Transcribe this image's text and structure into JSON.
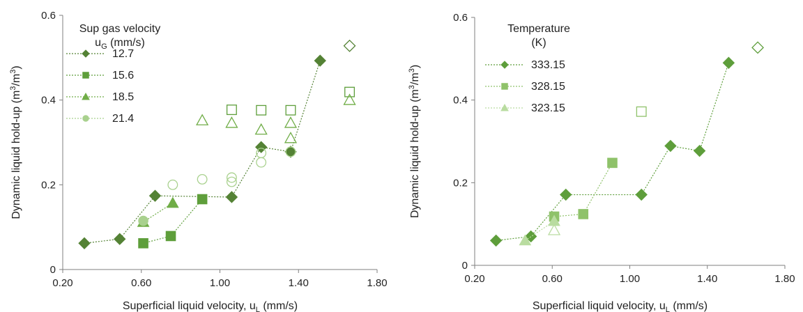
{
  "chart_data": [
    {
      "type": "scatter",
      "xlabel_main": "Superficial liquid velocity, u",
      "xlabel_sub": "L",
      "xlabel_unit": " (mm/s)",
      "ylabel_main": "Dynamic liquid hold-up (m",
      "ylabel_sup1": "3",
      "ylabel_mid": "/m",
      "ylabel_sup2": "3",
      "ylabel_end": ")",
      "xlim": [
        0.2,
        1.8
      ],
      "ylim": [
        0,
        0.6
      ],
      "x_ticks": [
        "0.20",
        "0.60",
        "1.00",
        "1.40",
        "1.80"
      ],
      "y_ticks": [
        "0",
        "0.2",
        "0.4",
        "0.6"
      ],
      "legend_title_line1": "Sup gas velocity",
      "legend_title_line2_main": "u",
      "legend_title_line2_sub": "G",
      "legend_title_line2_unit": " (mm/s)",
      "series": [
        {
          "name": "12.7",
          "marker": "diamond",
          "color": "#548235",
          "points": [
            [
              0.31,
              0.062
            ],
            [
              0.49,
              0.072
            ],
            [
              0.67,
              0.174
            ],
            [
              1.06,
              0.171
            ],
            [
              1.21,
              0.289
            ],
            [
              1.36,
              0.278
            ],
            [
              1.51,
              0.493
            ]
          ],
          "open_points": [
            [
              1.66,
              0.528
            ]
          ]
        },
        {
          "name": "15.6",
          "marker": "square",
          "color": "#5e9e3b",
          "points": [
            [
              0.61,
              0.062
            ],
            [
              0.75,
              0.079
            ],
            [
              0.91,
              0.166
            ]
          ],
          "open_points": [
            [
              1.06,
              0.377
            ],
            [
              1.21,
              0.376
            ],
            [
              1.36,
              0.376
            ],
            [
              1.66,
              0.419
            ]
          ]
        },
        {
          "name": "18.5",
          "marker": "triangle",
          "color": "#70ad47",
          "points": [
            [
              0.61,
              0.112
            ],
            [
              0.76,
              0.157
            ]
          ],
          "open_points": [
            [
              0.91,
              0.352
            ],
            [
              1.06,
              0.346
            ],
            [
              1.21,
              0.33
            ],
            [
              1.36,
              0.31
            ],
            [
              1.36,
              0.346
            ],
            [
              1.66,
              0.4
            ]
          ]
        },
        {
          "name": "21.4",
          "marker": "circle",
          "color": "#a9d18e",
          "points": [
            [
              0.61,
              0.115
            ]
          ],
          "open_points": [
            [
              0.76,
              0.2
            ],
            [
              0.91,
              0.213
            ],
            [
              1.06,
              0.217
            ],
            [
              1.06,
              0.207
            ],
            [
              1.21,
              0.253
            ],
            [
              1.21,
              0.275
            ],
            [
              1.36,
              0.278
            ]
          ]
        }
      ]
    },
    {
      "type": "scatter",
      "xlabel_main": "Superficial liquid velocity, u",
      "xlabel_sub": "L",
      "xlabel_unit": " (mm/s)",
      "ylabel_main": "Dynamic liquid hold-up (m",
      "ylabel_sup1": "3",
      "ylabel_mid": "/m",
      "ylabel_sup2": "3",
      "ylabel_end": ")",
      "xlim": [
        0.2,
        1.8
      ],
      "ylim": [
        0,
        0.6
      ],
      "x_ticks": [
        "0.20",
        "0.60",
        "1.00",
        "1.40",
        "1.80"
      ],
      "y_ticks": [
        "0",
        "0.2",
        "0.4",
        "0.6"
      ],
      "legend_title_line1": "Temperature",
      "legend_title_line2": "(K)",
      "series": [
        {
          "name": "333.15",
          "marker": "diamond",
          "color": "#5e9e3b",
          "points": [
            [
              0.31,
              0.06
            ],
            [
              0.49,
              0.07
            ],
            [
              0.67,
              0.171
            ],
            [
              1.06,
              0.171
            ],
            [
              1.21,
              0.289
            ],
            [
              1.36,
              0.277
            ],
            [
              1.51,
              0.49
            ]
          ],
          "open_points": [
            [
              1.66,
              0.527
            ]
          ]
        },
        {
          "name": "328.15",
          "marker": "square",
          "color": "#8fc26a",
          "points": [
            [
              0.61,
              0.118
            ],
            [
              0.76,
              0.124
            ],
            [
              0.91,
              0.248
            ]
          ],
          "open_points": [
            [
              1.06,
              0.372
            ]
          ]
        },
        {
          "name": "323.15",
          "marker": "triangle",
          "color": "#b9dca0",
          "points": [
            [
              0.46,
              0.06
            ],
            [
              0.61,
              0.107
            ]
          ],
          "open_points": [
            [
              0.61,
              0.085
            ]
          ]
        }
      ]
    }
  ]
}
